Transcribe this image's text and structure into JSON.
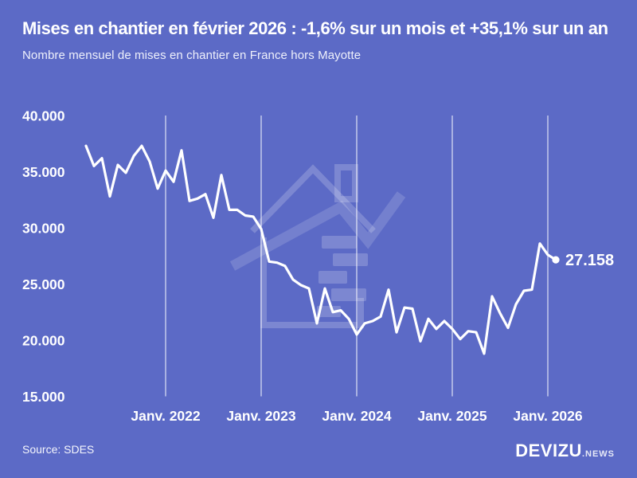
{
  "header": {
    "title": "Mises en chantier en février 2026 : -1,6% sur un mois et +35,1% sur un an",
    "subtitle": "Nombre mensuel de mises en chantier en France hors Mayotte"
  },
  "footer": {
    "source": "Source: SDES",
    "brand": "DEVIZU",
    "brand_suffix": ".NEWS"
  },
  "colors": {
    "background": "#5C6AC6",
    "line": "#FFFFFF",
    "grid": "#FFFFFF",
    "watermark": "rgba(255,255,255,0.2)"
  },
  "chart_data": {
    "type": "line",
    "title": "Mises en chantier en février 2026 : -1,6% sur un mois et +35,1% sur un an",
    "subtitle": "Nombre mensuel de mises en chantier en France hors Mayotte",
    "xlabel": "",
    "ylabel": "",
    "ylim": [
      15000,
      40000
    ],
    "grid": "vertical-year-lines-only",
    "legend": "none",
    "unit": "nombre mensuel de mises en chantier",
    "x": [
      "2021-03",
      "2021-04",
      "2021-05",
      "2021-06",
      "2021-07",
      "2021-08",
      "2021-09",
      "2021-10",
      "2021-11",
      "2021-12",
      "2022-01",
      "2022-02",
      "2022-03",
      "2022-04",
      "2022-05",
      "2022-06",
      "2022-07",
      "2022-08",
      "2022-09",
      "2022-10",
      "2022-11",
      "2022-12",
      "2023-01",
      "2023-02",
      "2023-03",
      "2023-04",
      "2023-05",
      "2023-06",
      "2023-07",
      "2023-08",
      "2023-09",
      "2023-10",
      "2023-11",
      "2023-12",
      "2024-01",
      "2024-02",
      "2024-03",
      "2024-04",
      "2024-05",
      "2024-06",
      "2024-07",
      "2024-08",
      "2024-09",
      "2024-10",
      "2024-11",
      "2024-12",
      "2025-01",
      "2025-02",
      "2025-03",
      "2025-04",
      "2025-05",
      "2025-06",
      "2025-07",
      "2025-08",
      "2025-09",
      "2025-10",
      "2025-11",
      "2025-12",
      "2026-01",
      "2026-02"
    ],
    "series": [
      {
        "name": "Mises en chantier France hors Mayotte",
        "values": [
          37300,
          35500,
          36200,
          32800,
          35600,
          34900,
          36400,
          37300,
          35900,
          33500,
          35100,
          34100,
          36900,
          32400,
          32600,
          33000,
          30900,
          34700,
          31600,
          31600,
          31100,
          31000,
          29900,
          27000,
          26900,
          26600,
          25400,
          24900,
          24600,
          21500,
          24600,
          22500,
          22650,
          21900,
          20500,
          21500,
          21700,
          22100,
          24500,
          20700,
          22900,
          22800,
          19900,
          21900,
          21000,
          21700,
          21000,
          20100,
          20800,
          20700,
          18800,
          23900,
          22400,
          21100,
          23200,
          24400,
          24500,
          28600,
          27600,
          27158
        ]
      }
    ],
    "y_ticks": [
      {
        "value": 40000,
        "label": "40.000"
      },
      {
        "value": 35000,
        "label": "35.000"
      },
      {
        "value": 30000,
        "label": "30.000"
      },
      {
        "value": 25000,
        "label": "25.000"
      },
      {
        "value": 20000,
        "label": "20.000"
      },
      {
        "value": 15000,
        "label": "15.000"
      }
    ],
    "x_ticks": [
      {
        "index": 10,
        "label": "Janv. 2022"
      },
      {
        "index": 22,
        "label": "Janv. 2023"
      },
      {
        "index": 34,
        "label": "Janv. 2024"
      },
      {
        "index": 46,
        "label": "Janv. 2025"
      },
      {
        "index": 58,
        "label": "Janv. 2026"
      }
    ],
    "annotation": {
      "month": "2026-02",
      "value": 27158,
      "label": "27.158"
    },
    "end_label": "27.158"
  }
}
